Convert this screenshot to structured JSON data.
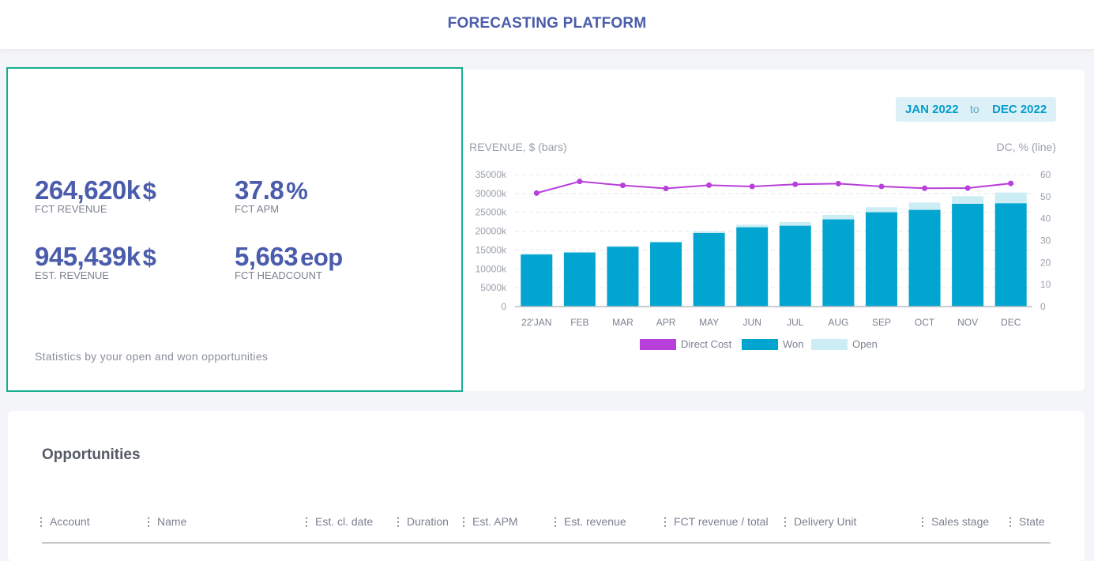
{
  "header": {
    "title": "FORECASTING PLATFORM"
  },
  "stats": [
    {
      "value": "264,620k",
      "unit": "$",
      "label": "FCT REVENUE"
    },
    {
      "value": "37.8",
      "unit": "%",
      "label": "FCT APM"
    },
    {
      "value": "945,439k",
      "unit": "$",
      "label": "EST. REVENUE"
    },
    {
      "value": "5,663",
      "unit": "eop",
      "label": "FCT HEADCOUNT"
    }
  ],
  "stats_note": "Statistics by your open and won opportunities",
  "date_range": {
    "from": "JAN 2022",
    "to_label": "to",
    "to": "DEC 2022"
  },
  "chart_data": {
    "type": "bar",
    "left_axis_label": "REVENUE, $ (bars)",
    "right_axis_label": "DC, % (line)",
    "categories": [
      "22'JAN",
      "FEB",
      "MAR",
      "APR",
      "MAY",
      "JUN",
      "JUL",
      "AUG",
      "SEP",
      "OCT",
      "NOV",
      "DEC"
    ],
    "y_ticks": [
      "0",
      "5000k",
      "10000k",
      "15000k",
      "20000k",
      "25000k",
      "30000k",
      "35000k"
    ],
    "y2_ticks": [
      "0",
      "10",
      "20",
      "30",
      "40",
      "50",
      "60"
    ],
    "ylim": [
      0,
      35000
    ],
    "y2lim": [
      0,
      60
    ],
    "stacked": true,
    "grid": true,
    "legend_position": "bottom",
    "series": [
      {
        "name": "Direct Cost",
        "kind": "line",
        "axis": "right",
        "color": "#b93fdb",
        "values": [
          51.6,
          56.9,
          55.1,
          53.7,
          55.2,
          54.6,
          55.6,
          55.9,
          54.6,
          53.8,
          53.9,
          56.0
        ]
      },
      {
        "name": "Won",
        "kind": "bar",
        "axis": "left",
        "color": "#02a5cf",
        "values": [
          13800,
          14330,
          15860,
          17050,
          19500,
          21030,
          21450,
          23130,
          25020,
          25650,
          27250,
          27390
        ]
      },
      {
        "name": "Open",
        "kind": "bar",
        "axis": "left",
        "color": "#cdedf5",
        "values": [
          250,
          200,
          280,
          210,
          490,
          700,
          980,
          1190,
          1330,
          1950,
          2030,
          2870
        ]
      }
    ]
  },
  "opportunities": {
    "title": "Opportunities",
    "columns": [
      "Account",
      "Name",
      "Est. cl. date",
      "Duration",
      "Est. APM",
      "Est. revenue",
      "FCT revenue / total",
      "Delivery Unit",
      "Sales stage",
      "State"
    ]
  }
}
